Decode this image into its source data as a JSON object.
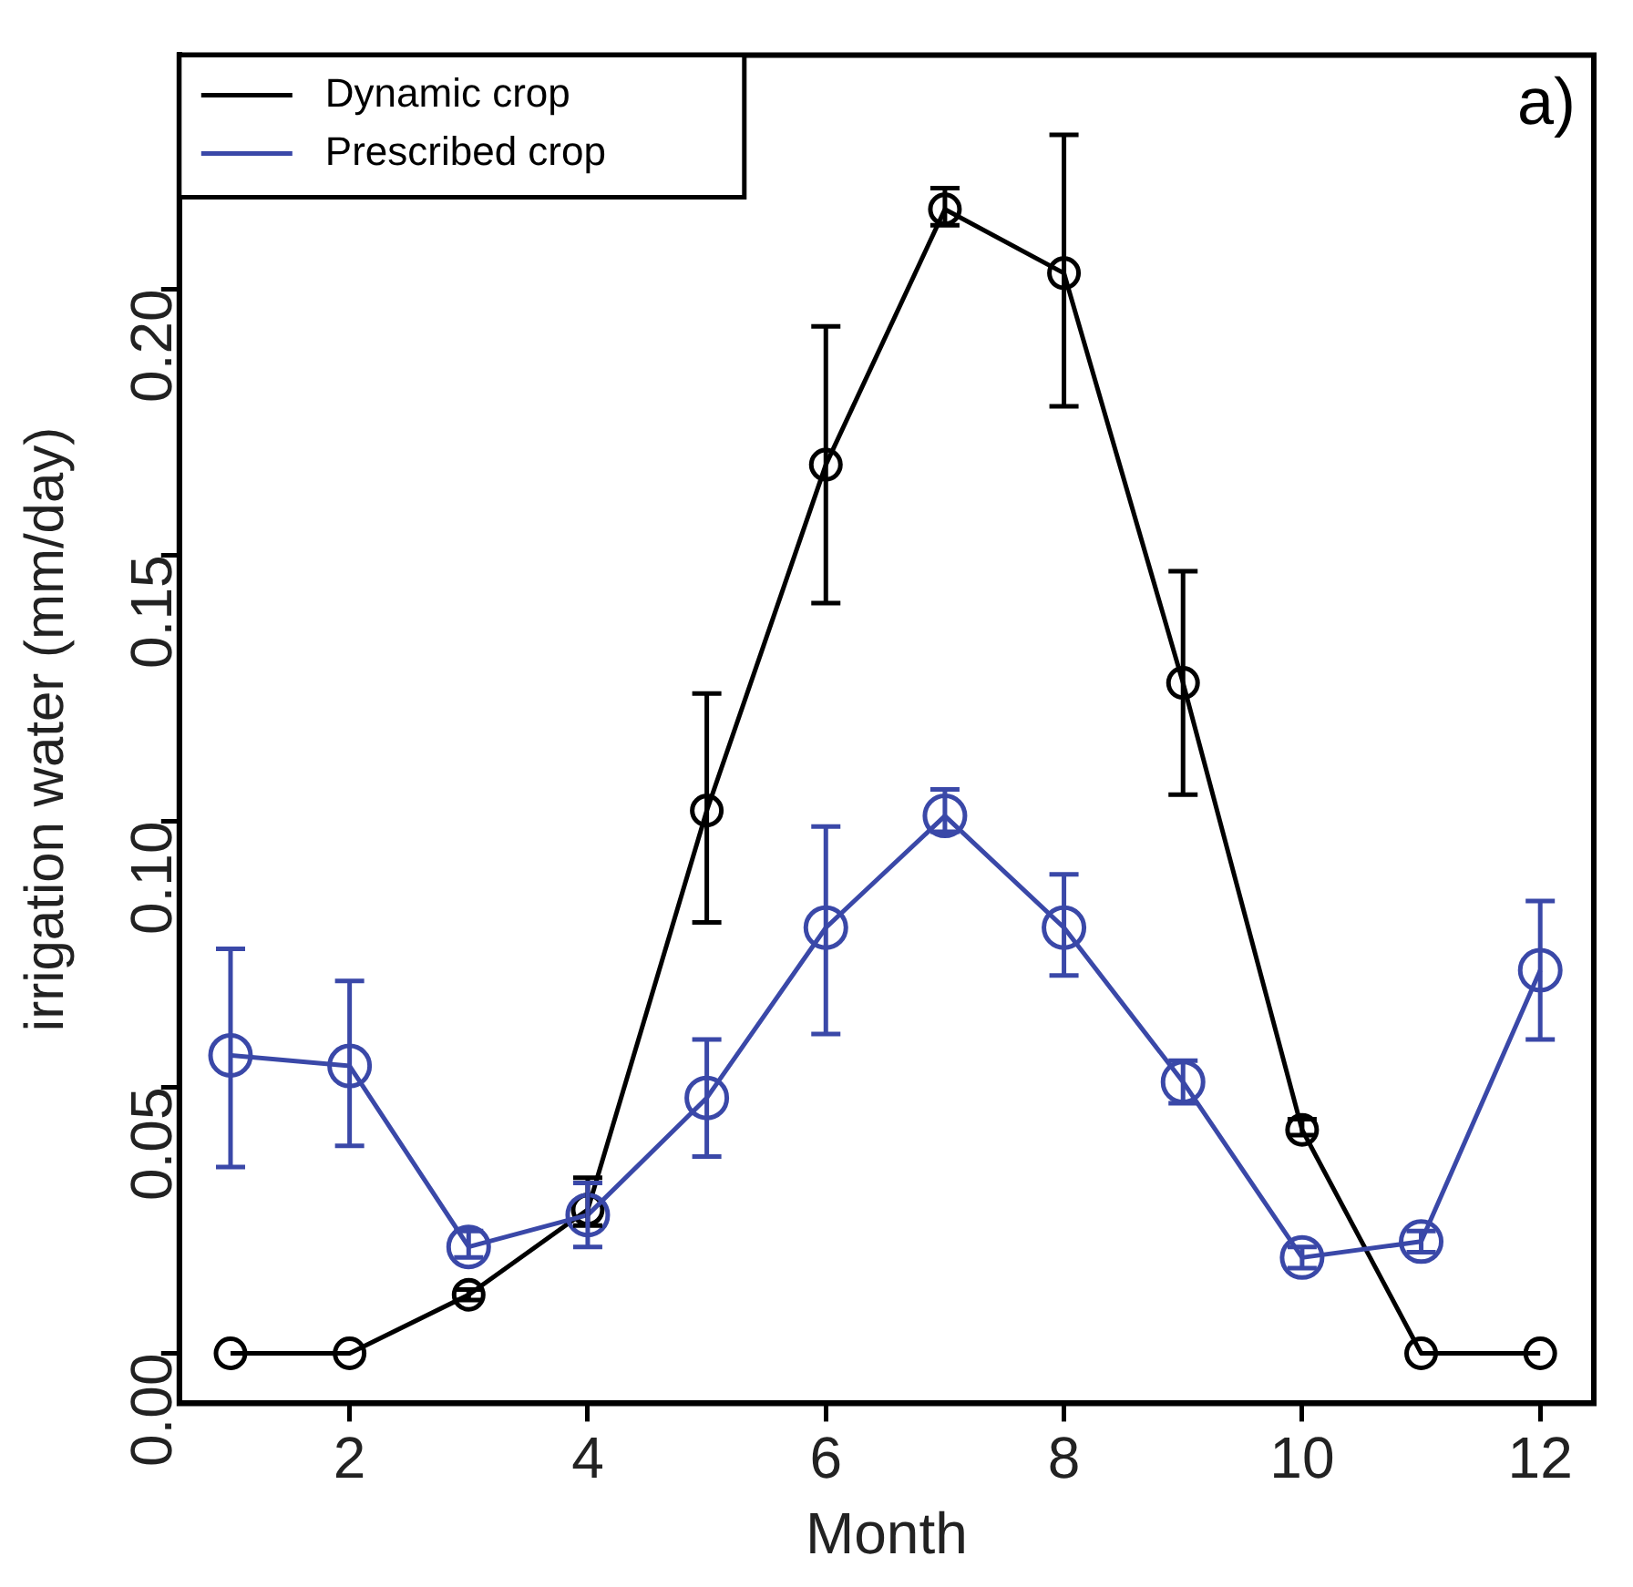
{
  "chart_data": {
    "type": "line",
    "xlabel": "Month",
    "ylabel": "irrigation water (mm/day)",
    "annotations": [
      "a)"
    ],
    "x": [
      1,
      2,
      3,
      4,
      5,
      6,
      7,
      8,
      9,
      10,
      11,
      12
    ],
    "series": [
      {
        "name": "Dynamic crop",
        "color": "#000000",
        "values": [
          0,
          0,
          0.011,
          0.027,
          0.102,
          0.167,
          0.215,
          0.203,
          0.126,
          0.042,
          0,
          0
        ],
        "errors": [
          null,
          null,
          [
            0.01,
            0.012
          ],
          [
            0.024,
            0.033
          ],
          [
            0.081,
            0.124
          ],
          [
            0.141,
            0.193
          ],
          [
            0.212,
            0.219
          ],
          [
            0.178,
            0.229
          ],
          [
            0.105,
            0.147
          ],
          [
            0.041,
            0.044
          ],
          null,
          null
        ]
      },
      {
        "name": "Prescribed crop",
        "color": "#3a48a8",
        "values": [
          0.056,
          0.054,
          0.02,
          0.026,
          0.048,
          0.08,
          0.101,
          0.08,
          0.051,
          0.018,
          0.021,
          0.072
        ],
        "errors": [
          [
            0.035,
            0.076
          ],
          [
            0.039,
            0.07
          ],
          [
            0.018,
            0.023
          ],
          [
            0.02,
            0.032
          ],
          [
            0.037,
            0.059
          ],
          [
            0.06,
            0.099
          ],
          [
            0.098,
            0.106
          ],
          [
            0.071,
            0.09
          ],
          [
            0.047,
            0.055
          ],
          [
            0.016,
            0.02
          ],
          [
            0.019,
            0.023
          ],
          [
            0.059,
            0.085
          ]
        ]
      }
    ],
    "xlim": [
      0.57,
      12.45
    ],
    "ylim": [
      -0.0094,
      0.244
    ],
    "xticks": [
      2,
      4,
      6,
      8,
      10,
      12
    ],
    "yticks": [
      {
        "value": 0,
        "label": "0.00"
      },
      {
        "value": 0.05,
        "label": "0.05"
      },
      {
        "value": 0.1,
        "label": "0.10"
      },
      {
        "value": 0.15,
        "label": "0.15"
      },
      {
        "value": 0.2,
        "label": "0.20"
      }
    ],
    "grid": false,
    "legend": "top left",
    "marker": "circle",
    "line_style": "solid"
  }
}
